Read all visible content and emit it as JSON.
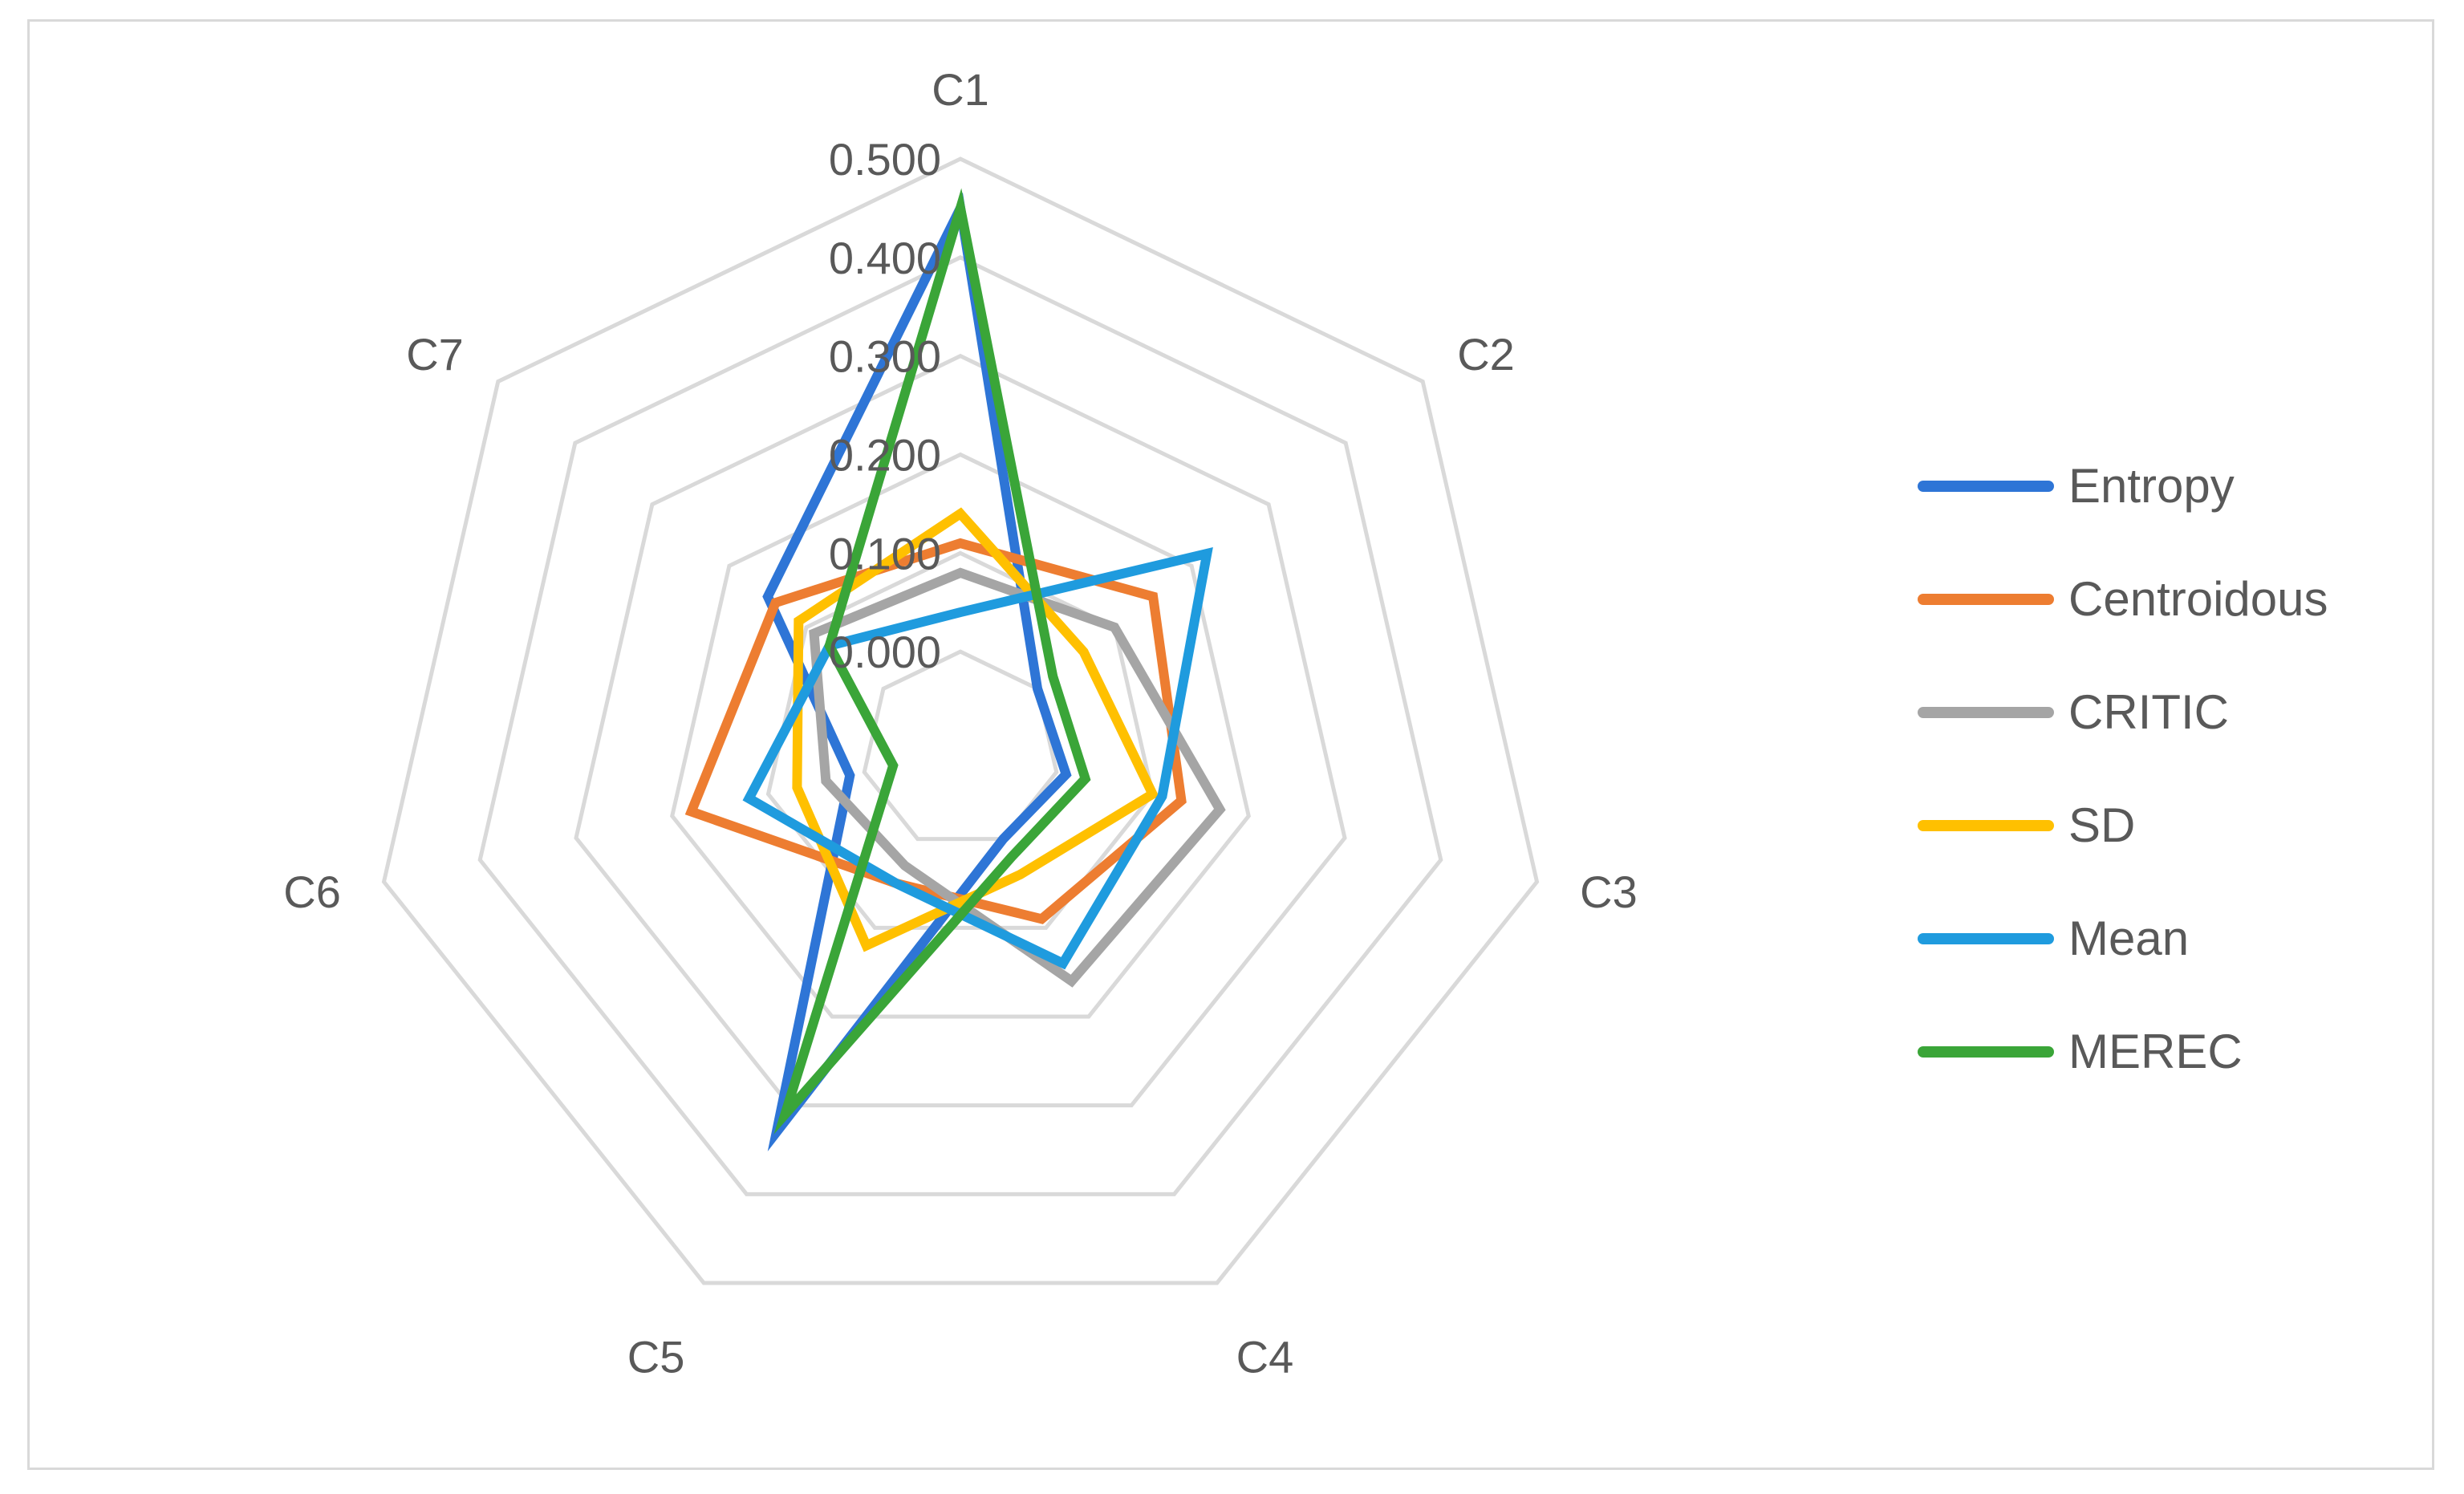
{
  "chart_data": {
    "type": "radar",
    "categories": [
      "C1",
      "C2",
      "C3",
      "C4",
      "C5",
      "C6",
      "C7"
    ],
    "ticks": [
      "0.000",
      "0.100",
      "0.200",
      "0.300",
      "0.400",
      "0.500"
    ],
    "rlim": [
      -0.1,
      0.5
    ],
    "grid": true,
    "legend_position": "right",
    "series": [
      {
        "name": "Entropy",
        "color": "#2E75D6",
        "values": [
          0.45,
          0.0,
          0.01,
          0.0,
          0.33,
          0.015,
          0.15
        ]
      },
      {
        "name": "Centroidous",
        "color": "#ED7D31",
        "values": [
          0.11,
          0.15,
          0.13,
          0.09,
          0.05,
          0.18,
          0.14
        ]
      },
      {
        "name": "CRITIC",
        "color": "#A5A5A5",
        "values": [
          0.08,
          0.1,
          0.17,
          0.16,
          0.03,
          0.04,
          0.09
        ]
      },
      {
        "name": "SD",
        "color": "#FFC000",
        "values": [
          0.14,
          0.06,
          0.1,
          0.04,
          0.12,
          0.07,
          0.11
        ]
      },
      {
        "name": "Mean",
        "color": "#1F9BDE",
        "values": [
          0.04,
          0.22,
          0.11,
          0.14,
          0.05,
          0.12,
          0.07
        ]
      },
      {
        "name": "MEREC",
        "color": "#3AA538",
        "values": [
          0.45,
          0.02,
          0.03,
          0.02,
          0.31,
          -0.03,
          0.07
        ]
      }
    ]
  }
}
